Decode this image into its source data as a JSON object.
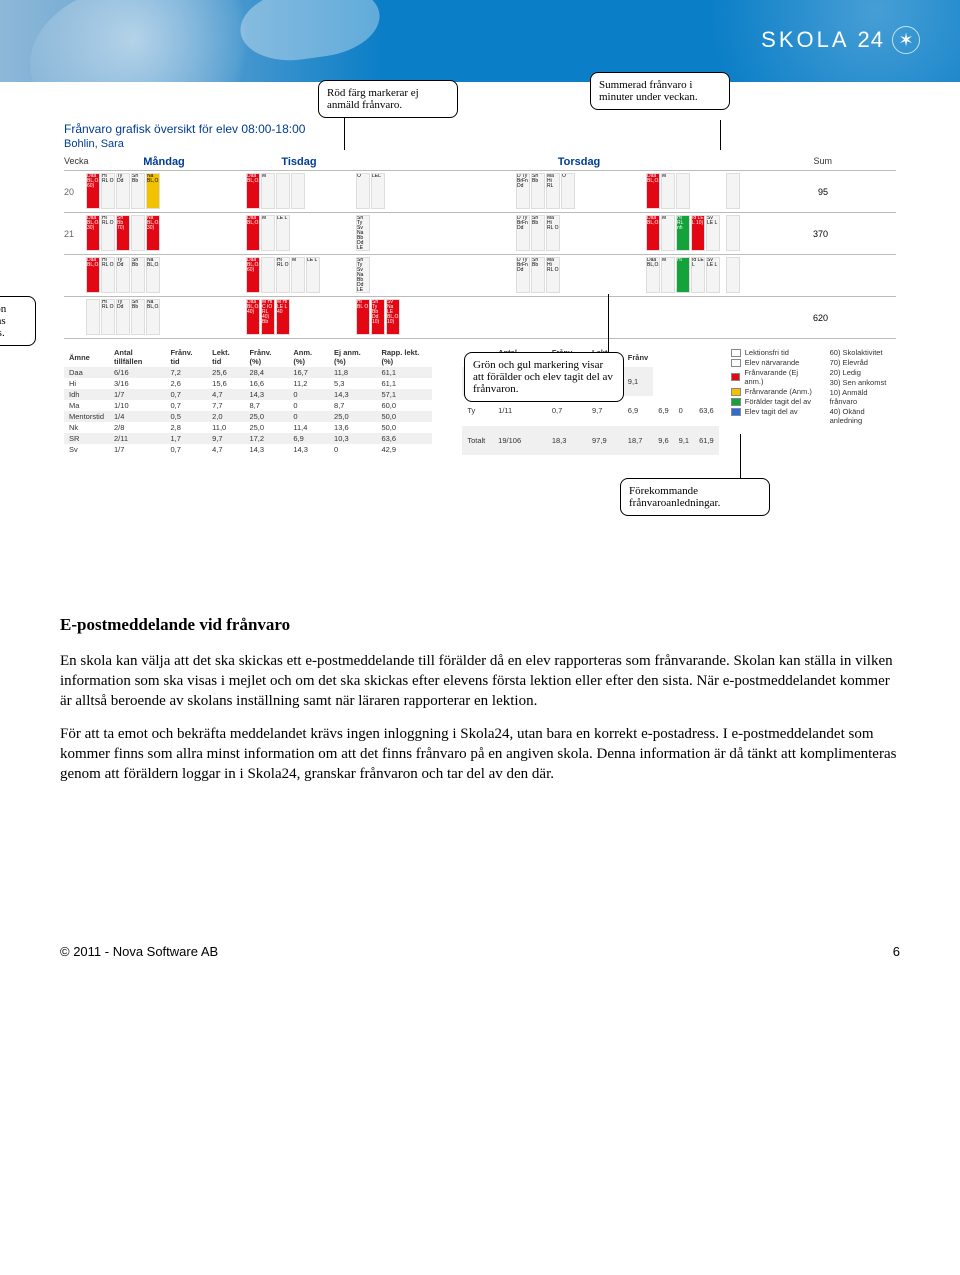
{
  "brand": {
    "name": "SKOLA",
    "suffix": "24"
  },
  "callouts": {
    "c1": "Röd färg markerar ej anmäld frånvaro.",
    "c2": "Summerad frånvaro i minuter under veckan.",
    "c3": "Frånvaron summeras ämnesvis.",
    "c4": "Grön och gul markering visar att förälder och elev tagit del av frånvaron.",
    "c5": "Förekommande frånvaroanledningar."
  },
  "chart": {
    "title": "Frånvaro grafisk översikt för elev 08:00-18:00",
    "student": "Bohlin, Sara",
    "days": [
      "Måndag",
      "Tisdag",
      "",
      "Torsdag",
      "",
      "",
      "Sum"
    ],
    "vecka_label": "Vecka",
    "rows": [
      {
        "week": "20",
        "sum": "95",
        "days": [
          [
            {
              "c": "red",
              "t": "Daa BL,O,IWI,LEL 60)"
            },
            {
              "c": "",
              "t": "Hi RL O"
            },
            {
              "c": "",
              "t": "Ty Dd"
            },
            {
              "c": "",
              "t": "Sh Bb"
            },
            {
              "c": "yellow",
              "t": "Na BL,O,LEL"
            }
          ],
          [
            {
              "c": "red",
              "t": "Daa BL,O,IWI,LEL"
            },
            {
              "c": "",
              "t": "M"
            },
            {
              "c": "",
              "t": ""
            },
            {
              "c": "",
              "t": ""
            }
          ],
          [
            {
              "c": "",
              "t": "O"
            },
            {
              "c": "",
              "t": "LEL"
            }
          ],
          [
            {
              "c": "",
              "t": "D Ty BrFn Dd"
            },
            {
              "c": "",
              "t": "Sh Bb"
            },
            {
              "c": "",
              "t": "Ma Hi RL"
            },
            {
              "c": "",
              "t": "O"
            }
          ],
          [
            {
              "c": "red",
              "t": "Daa BL,O,IWI,LEL"
            },
            {
              "c": "",
              "t": "M"
            },
            {
              "c": "",
              "t": ""
            }
          ],
          [
            {
              "c": "",
              "t": ""
            }
          ]
        ]
      },
      {
        "week": "21",
        "sum": "370",
        "days": [
          [
            {
              "c": "red",
              "t": "Daa BL,O,IWI,LEL 30)"
            },
            {
              "c": "",
              "t": "Hi RL O"
            },
            {
              "c": "red",
              "t": "Sh Bb 70)"
            },
            {
              "c": "",
              "t": ""
            },
            {
              "c": "red",
              "t": "Na BL,O,LEL 30)"
            }
          ],
          [
            {
              "c": "red",
              "t": "Daa BL,O,IWI,LEL"
            },
            {
              "c": "",
              "t": "M"
            },
            {
              "c": "",
              "t": "LE L"
            }
          ],
          [
            {
              "c": "",
              "t": "Sh Ty Sv Na Bb Dd LE BL,O,LEL"
            }
          ],
          [
            {
              "c": "",
              "t": "D Ty BrFn Dd"
            },
            {
              "c": "",
              "t": "Sh Bb"
            },
            {
              "c": "",
              "t": "Ma Hi RL O"
            }
          ],
          [
            {
              "c": "red",
              "t": "Daa BL,O,IWI,LEL"
            },
            {
              "c": "",
              "t": "M"
            },
            {
              "c": "green",
              "t": "Hi RL nh"
            },
            {
              "c": "red",
              "t": "Id LE L 10)"
            },
            {
              "c": "",
              "t": "Sv LE L"
            }
          ],
          [
            {
              "c": "",
              "t": ""
            }
          ]
        ]
      },
      {
        "week": "",
        "sum": "",
        "days": [
          [
            {
              "c": "red",
              "t": "Daa BL,O,IWI,"
            },
            {
              "c": "",
              "t": "Hi RL O"
            },
            {
              "c": "",
              "t": "Ty Dd"
            },
            {
              "c": "",
              "t": "Sh Bb"
            },
            {
              "c": "",
              "t": "Na BL,O,LEL"
            }
          ],
          [
            {
              "c": "red",
              "t": "Daa BL,O,IWI,LEL 60)"
            },
            {
              "c": "",
              "t": ""
            },
            {
              "c": "",
              "t": "Hi RL O"
            },
            {
              "c": "",
              "t": "M"
            },
            {
              "c": "",
              "t": "LE L"
            }
          ],
          [
            {
              "c": "",
              "t": "Sh Ty Sv Na Bb Dd LE BL,O,LEL"
            }
          ],
          [
            {
              "c": "",
              "t": "D Ty BrFn Dd"
            },
            {
              "c": "",
              "t": "Sh Bb"
            },
            {
              "c": "",
              "t": "Ma Hi RL O"
            }
          ],
          [
            {
              "c": "",
              "t": "Daa BL,O,IWI,LEL"
            },
            {
              "c": "",
              "t": "M"
            },
            {
              "c": "green",
              "t": "Hi"
            },
            {
              "c": "",
              "t": "Id LE L"
            },
            {
              "c": "",
              "t": "Sv LE L"
            }
          ],
          [
            {
              "c": "",
              "t": ""
            }
          ]
        ]
      },
      {
        "week": "",
        "sum": "620",
        "days": [
          [
            {
              "c": "",
              "t": ""
            },
            {
              "c": "",
              "t": "Hi RL O"
            },
            {
              "c": "",
              "t": "Ty Dd"
            },
            {
              "c": "",
              "t": "Sh Bb"
            },
            {
              "c": "",
              "t": "Na BL,O,LEL"
            }
          ],
          [
            {
              "c": "red",
              "t": "Daa BL,O,IWI,LEL 40)"
            },
            {
              "c": "red",
              "t": "M Hi C IO RL 40) Bb"
            },
            {
              "c": "red",
              "t": "M Hi LE L 40"
            }
          ],
          [
            {
              "c": "red",
              "t": "Hi BL O"
            },
            {
              "c": "red",
              "t": "Sh Ty Bb Dd 10)"
            },
            {
              "c": "red",
              "t": "Sv Na LE BL,O,LEL 10)"
            }
          ],
          [],
          [],
          []
        ]
      }
    ],
    "table1": {
      "columns": [
        "Ämne",
        "Antal tillfällen",
        "Frånv. tid",
        "Lekt. tid",
        "Frånv. (%)",
        "Anm. (%)",
        "Ej anm. (%)",
        "Rapp. lekt.(%)"
      ],
      "rows": [
        [
          "Daa",
          "6/16",
          "7,2",
          "25,6",
          "28,4",
          "16,7",
          "11,8",
          "61,1"
        ],
        [
          "Hi",
          "3/16",
          "2,6",
          "15,6",
          "16,6",
          "11,2",
          "5,3",
          "61,1"
        ],
        [
          "Idh",
          "1/7",
          "0,7",
          "4,7",
          "14,3",
          "0",
          "14,3",
          "57,1"
        ],
        [
          "Ma",
          "1/10",
          "0,7",
          "7,7",
          "8,7",
          "0",
          "8,7",
          "60,0"
        ],
        [
          "Mentorstid",
          "1/4",
          "0,5",
          "2,0",
          "25,0",
          "0",
          "25,0",
          "50,0"
        ],
        [
          "Nk",
          "2/8",
          "2,8",
          "11,0",
          "25,0",
          "11,4",
          "13,6",
          "50,0"
        ],
        [
          "SR",
          "2/11",
          "1,7",
          "9,7",
          "17,2",
          "6,9",
          "10,3",
          "63,6"
        ],
        [
          "Sv",
          "1/7",
          "0,7",
          "4,7",
          "14,3",
          "14,3",
          "0",
          "42,9"
        ]
      ]
    },
    "table2": {
      "columns": [
        "Ämne",
        "Antal tillfällen",
        "Frånv. tid",
        "Lekt. tid",
        "Frånv"
      ],
      "rows": [
        [
          "Ty",
          "1/11",
          "0,7",
          "7,3",
          "9,1"
        ],
        [
          "Ty",
          "1/11",
          "0,7",
          "9,7",
          "6,9",
          "6,9",
          "0",
          "63,6"
        ],
        [
          "Totalt",
          "19/106",
          "18,3",
          "97,9",
          "18,7",
          "9,6",
          "9,1",
          "61,9"
        ]
      ]
    },
    "legend": [
      {
        "color": "#ffffff",
        "label": "Lektionsfri tid"
      },
      {
        "color": "#ffffff",
        "label": "Elev närvarande"
      },
      {
        "color": "#e30613",
        "label": "Frånvarande (Ej anm.)"
      },
      {
        "color": "#f2c200",
        "label": "Frånvarande (Anm.)"
      },
      {
        "color": "#14a33a",
        "label": "Förälder tagit del av"
      },
      {
        "color": "#2e6bd6",
        "label": "Elev tagit del av"
      }
    ],
    "legend2": [
      "60) Skolaktivitet",
      "70) Elevråd",
      "20) Ledig",
      "30) Sen ankomst",
      "10) Anmäld frånvaro",
      "40) Okänd anledning"
    ]
  },
  "article": {
    "heading": "E-postmeddelande vid frånvaro",
    "p1": "En skola kan välja att det ska skickas ett e-postmeddelande till förälder då en elev rapporteras som frånvarande. Skolan kan ställa in vilken information som ska visas i mejlet och om det ska skickas efter elevens första lektion eller efter den sista. När e-postmeddelandet kommer är alltså beroende av skolans inställning samt när läraren rapporterar en lektion.",
    "p2": "För att ta emot och bekräfta meddelandet krävs ingen inloggning i Skola24, utan bara en korrekt e-postadress. I e-postmeddelandet som kommer finns som allra minst information om att det finns frånvaro på en angiven skola. Denna information är då tänkt att komplimenteras genom att föräldern loggar in i Skola24, granskar frånvaron och tar del av den där."
  },
  "footer": {
    "copyright": "© 2011 - Nova Software AB",
    "page": "6"
  }
}
